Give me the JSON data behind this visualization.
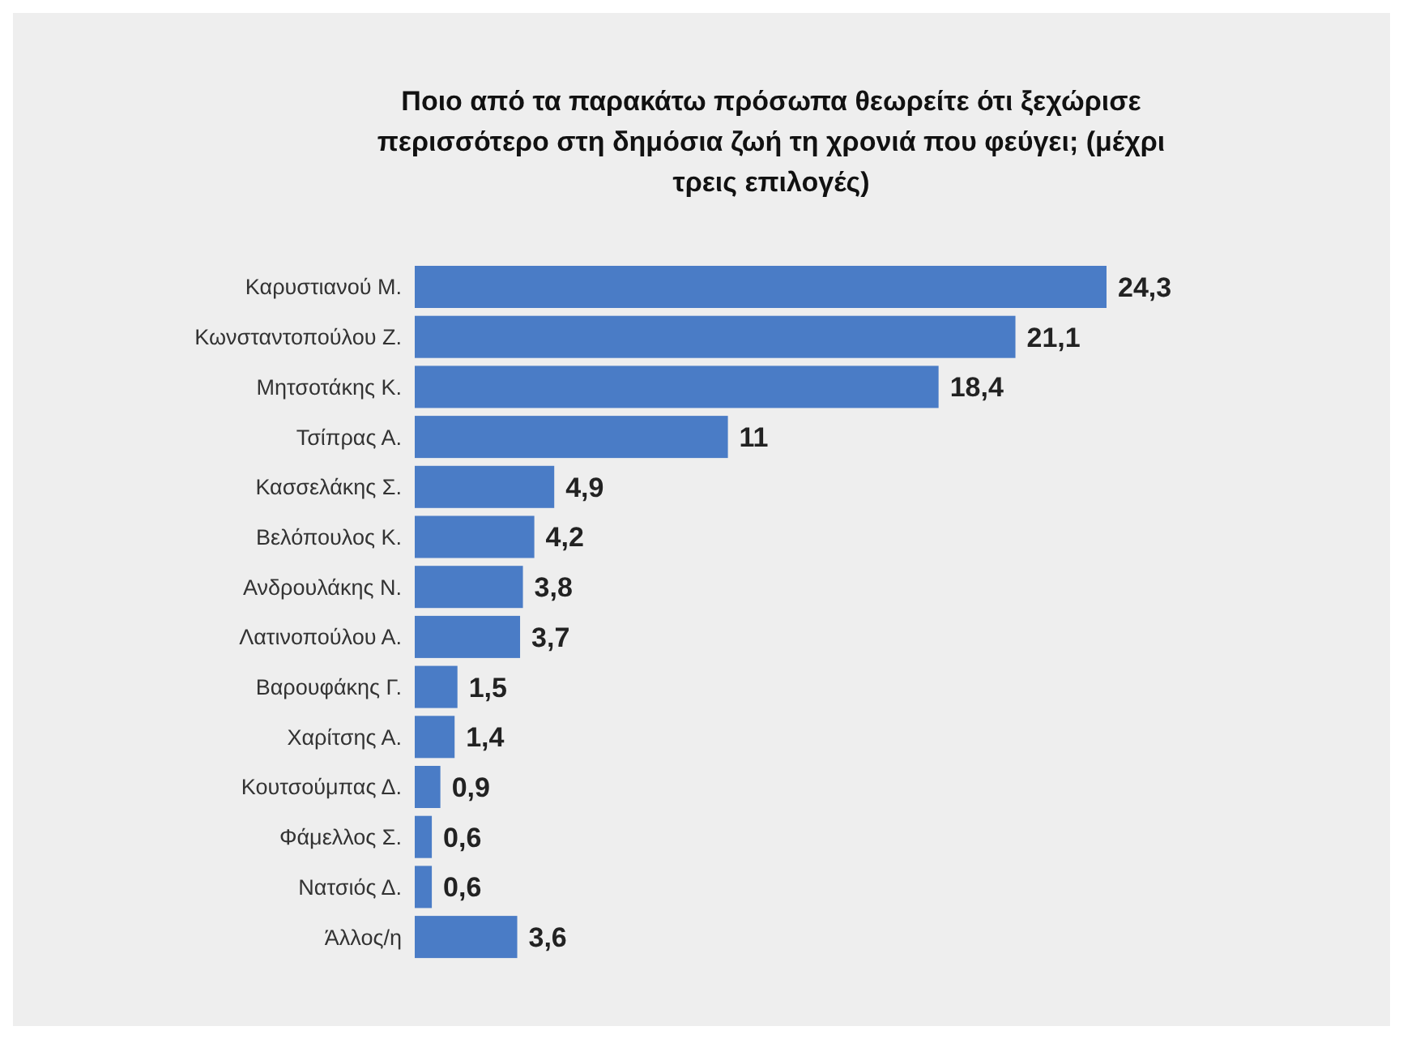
{
  "chart_data": {
    "type": "bar",
    "orientation": "horizontal",
    "title": "Ποιο από τα παρακάτω πρόσωπα θεωρείτε ότι ξεχώρισε περισσότερο στη δημόσια ζωή τη χρονιά που φεύγει; (μέχρι τρεις επιλογές)",
    "categories": [
      "Καρυστιανού Μ.",
      "Κωνσταντοπούλου Ζ.",
      "Μητσοτάκης Κ.",
      "Τσίπρας Α.",
      "Κασσελάκης Σ.",
      "Βελόπουλος Κ.",
      "Ανδρουλάκης Ν.",
      "Λατινοπούλου Α.",
      "Βαρουφάκης Γ.",
      "Χαρίτσης Α.",
      "Κουτσούμπας Δ.",
      "Φάμελλος Σ.",
      "Νατσιός Δ.",
      "Άλλος/η"
    ],
    "values": [
      24.3,
      21.1,
      18.4,
      11,
      4.9,
      4.2,
      3.8,
      3.7,
      1.5,
      1.4,
      0.9,
      0.6,
      0.6,
      3.6
    ],
    "value_labels": [
      "24,3",
      "21,1",
      "18,4",
      "11",
      "4,9",
      "4,2",
      "3,8",
      "3,7",
      "1,5",
      "1,4",
      "0,9",
      "0,6",
      "0,6",
      "3,6"
    ],
    "color": "#4a7cc6"
  }
}
